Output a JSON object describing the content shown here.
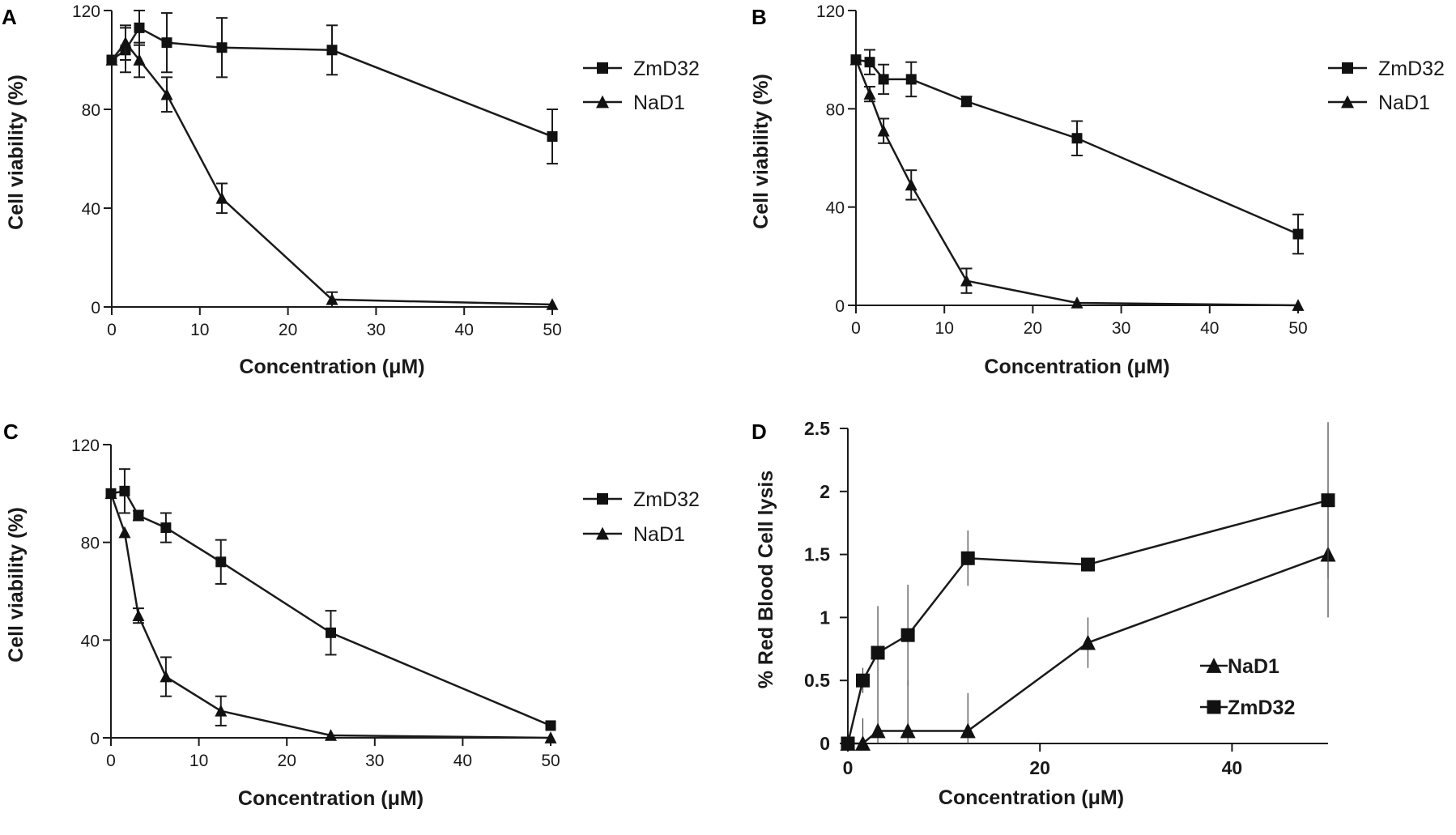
{
  "chart_data": [
    {
      "panel": "A",
      "type": "line",
      "title": "",
      "xlabel": "Concentration (μM)",
      "ylabel": "Cell viability (%)",
      "xlim": [
        0,
        50
      ],
      "ylim": [
        0,
        120
      ],
      "xticks": [
        0,
        10,
        20,
        30,
        40,
        50
      ],
      "yticks": [
        0,
        40,
        80,
        120
      ],
      "grid": false,
      "legend": "right",
      "series": [
        {
          "name": "ZmD32",
          "marker": "square",
          "x": [
            0,
            1.56,
            3.125,
            6.25,
            12.5,
            25,
            50
          ],
          "values": [
            100,
            104,
            113,
            107,
            105,
            104,
            69
          ],
          "errors": [
            0,
            9,
            7,
            12,
            12,
            10,
            11
          ]
        },
        {
          "name": "NaD1",
          "marker": "triangle",
          "x": [
            0,
            1.56,
            3.125,
            6.25,
            12.5,
            25,
            50
          ],
          "values": [
            100,
            107,
            100,
            86,
            44,
            3,
            1
          ],
          "errors": [
            0,
            7,
            7,
            7,
            6,
            3,
            0
          ]
        }
      ]
    },
    {
      "panel": "B",
      "type": "line",
      "title": "",
      "xlabel": "Concentration (μM)",
      "ylabel": "Cell viability (%)",
      "xlim": [
        0,
        50
      ],
      "ylim": [
        0,
        120
      ],
      "xticks": [
        0,
        10,
        20,
        30,
        40,
        50
      ],
      "yticks": [
        0,
        40,
        80,
        120
      ],
      "grid": false,
      "legend": "top-right",
      "series": [
        {
          "name": "ZmD32",
          "marker": "square",
          "x": [
            0,
            1.56,
            3.125,
            6.25,
            12.5,
            25,
            50
          ],
          "values": [
            100,
            99,
            92,
            92,
            83,
            68,
            29
          ],
          "errors": [
            0,
            5,
            6,
            7,
            2,
            7,
            8
          ]
        },
        {
          "name": "NaD1",
          "marker": "triangle",
          "x": [
            0,
            1.56,
            3.125,
            6.25,
            12.5,
            25,
            50
          ],
          "values": [
            100,
            86,
            71,
            49,
            10,
            1,
            0
          ],
          "errors": [
            0,
            3,
            5,
            6,
            5,
            0,
            0
          ]
        }
      ]
    },
    {
      "panel": "C",
      "type": "line",
      "title": "",
      "xlabel": "Concentration (μM)",
      "ylabel": "Cell viability (%)",
      "xlim": [
        0,
        50
      ],
      "ylim": [
        0,
        120
      ],
      "xticks": [
        0,
        10,
        20,
        30,
        40,
        50
      ],
      "yticks": [
        0,
        40,
        80,
        120
      ],
      "grid": false,
      "legend": "right",
      "series": [
        {
          "name": "ZmD32",
          "marker": "square",
          "x": [
            0,
            1.56,
            3.125,
            6.25,
            12.5,
            25,
            50
          ],
          "values": [
            100,
            101,
            91,
            86,
            72,
            43,
            5
          ],
          "errors": [
            0,
            9,
            2,
            6,
            9,
            9,
            0
          ]
        },
        {
          "name": "NaD1",
          "marker": "triangle",
          "x": [
            0,
            1.56,
            3.125,
            6.25,
            12.5,
            25,
            50
          ],
          "values": [
            100,
            84,
            50,
            25,
            11,
            1,
            0
          ],
          "errors": [
            0,
            0,
            3,
            8,
            6,
            0,
            0
          ]
        }
      ]
    },
    {
      "panel": "D",
      "type": "line",
      "title": "",
      "xlabel": "Concentration (μM)",
      "ylabel": "% Red Blood Cell lysis",
      "xlim": [
        0,
        50
      ],
      "ylim": [
        0,
        2.5
      ],
      "xticks": [
        0,
        20,
        40
      ],
      "yticks": [
        0,
        0.5,
        1,
        1.5,
        2,
        2.5
      ],
      "ytick_labels": [
        "0",
        "0.5",
        "1",
        "1.5",
        "2",
        "2.5"
      ],
      "grid": false,
      "legend": "bottom-right",
      "series": [
        {
          "name": "NaD1",
          "marker": "triangle",
          "x": [
            0,
            1.56,
            3.125,
            6.25,
            12.5,
            25,
            50
          ],
          "values": [
            0,
            0,
            0.1,
            0.1,
            0.1,
            0.8,
            1.5
          ],
          "errors": [
            0,
            0.2,
            0.25,
            0.4,
            0.3,
            0.2,
            0.5
          ]
        },
        {
          "name": "ZmD32",
          "marker": "square",
          "x": [
            0,
            1.56,
            3.125,
            6.25,
            12.5,
            25,
            50
          ],
          "values": [
            0,
            0.5,
            0.72,
            0.86,
            1.47,
            1.42,
            1.93
          ],
          "errors": [
            0,
            0.1,
            0.37,
            0.4,
            0.22,
            0.05,
            0.62
          ]
        }
      ]
    }
  ]
}
